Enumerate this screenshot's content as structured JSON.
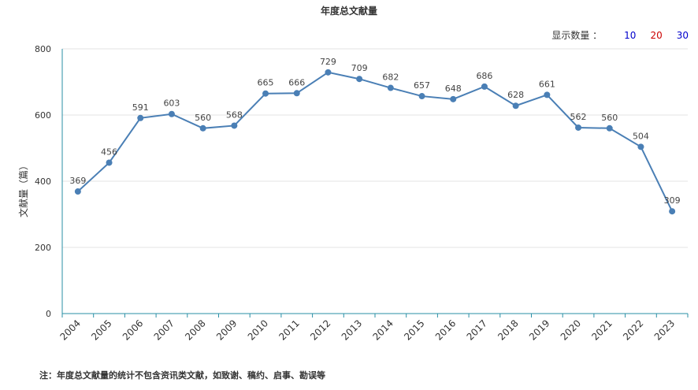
{
  "title": "年度总文献量",
  "display_count": {
    "label": "显示数量 ：",
    "options": [
      {
        "value": "10",
        "color": "#0000cc"
      },
      {
        "value": "20",
        "color": "#cc0000"
      },
      {
        "value": "30",
        "color": "#0000cc"
      }
    ]
  },
  "note": "注：年度总文献量的统计不包含资讯类文献，如致谢、稿约、启事、勘误等",
  "chart_data": {
    "type": "line",
    "title": "年度总文献量",
    "ylabel": "文献量（篇）",
    "xlabel": "",
    "ylim": [
      0,
      800
    ],
    "yticks": [
      0,
      200,
      400,
      600,
      800
    ],
    "categories": [
      "2004",
      "2005",
      "2006",
      "2007",
      "2008",
      "2009",
      "2010",
      "2011",
      "2012",
      "2013",
      "2014",
      "2015",
      "2016",
      "2017",
      "2018",
      "2019",
      "2020",
      "2021",
      "2022",
      "2023"
    ],
    "series": [
      {
        "values": [
          369,
          456,
          591,
          603,
          560,
          568,
          665,
          666,
          729,
          709,
          682,
          657,
          648,
          686,
          628,
          661,
          562,
          560,
          504,
          309
        ],
        "color": "#4a7fb5"
      }
    ],
    "grid": true,
    "data_labels": true
  }
}
